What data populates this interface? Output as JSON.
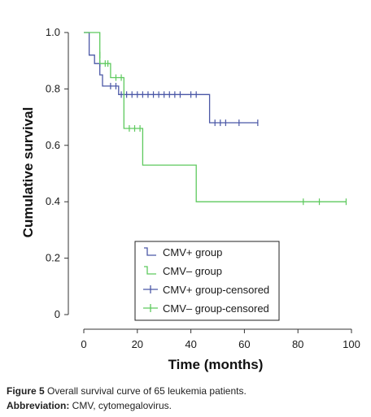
{
  "chart_data": {
    "type": "line",
    "xlabel": "Time (months)",
    "ylabel": "Cumulative survival",
    "xlim": [
      0,
      100
    ],
    "ylim": [
      0,
      1.0
    ],
    "x_ticks": [
      "0",
      "20",
      "40",
      "60",
      "80",
      "100"
    ],
    "y_ticks": [
      "0",
      "0.2",
      "0.4",
      "0.6",
      "0.8",
      "1.0"
    ],
    "legend_position": "bottom-center",
    "series": [
      {
        "name": "CMV+ group",
        "color": "#4a57a6",
        "step": true,
        "points": [
          [
            0,
            1.0
          ],
          [
            2,
            1.0
          ],
          [
            2,
            0.92
          ],
          [
            4,
            0.92
          ],
          [
            4,
            0.89
          ],
          [
            6,
            0.89
          ],
          [
            6,
            0.85
          ],
          [
            7,
            0.85
          ],
          [
            7,
            0.81
          ],
          [
            13,
            0.81
          ],
          [
            13,
            0.78
          ],
          [
            47,
            0.78
          ],
          [
            47,
            0.68
          ],
          [
            65,
            0.68
          ]
        ],
        "censored_name": "CMV+ group-censored",
        "censored": [
          [
            6,
            0.89
          ],
          [
            10,
            0.81
          ],
          [
            12,
            0.81
          ],
          [
            14,
            0.78
          ],
          [
            16,
            0.78
          ],
          [
            18,
            0.78
          ],
          [
            20,
            0.78
          ],
          [
            22,
            0.78
          ],
          [
            24,
            0.78
          ],
          [
            26,
            0.78
          ],
          [
            28,
            0.78
          ],
          [
            30,
            0.78
          ],
          [
            32,
            0.78
          ],
          [
            34,
            0.78
          ],
          [
            36,
            0.78
          ],
          [
            40,
            0.78
          ],
          [
            42,
            0.78
          ],
          [
            49,
            0.68
          ],
          [
            51,
            0.68
          ],
          [
            53,
            0.68
          ],
          [
            58,
            0.68
          ],
          [
            65,
            0.68
          ]
        ]
      },
      {
        "name": "CMV– group",
        "color": "#5dc95d",
        "step": true,
        "points": [
          [
            0,
            1.0
          ],
          [
            6,
            1.0
          ],
          [
            6,
            0.89
          ],
          [
            10,
            0.89
          ],
          [
            10,
            0.84
          ],
          [
            15,
            0.84
          ],
          [
            15,
            0.66
          ],
          [
            22,
            0.66
          ],
          [
            22,
            0.53
          ],
          [
            42,
            0.53
          ],
          [
            42,
            0.4
          ],
          [
            98,
            0.4
          ]
        ],
        "censored_name": "CMV– group-censored",
        "censored": [
          [
            6,
            0.92
          ],
          [
            8,
            0.89
          ],
          [
            9,
            0.89
          ],
          [
            12,
            0.84
          ],
          [
            14,
            0.84
          ],
          [
            17,
            0.66
          ],
          [
            19,
            0.66
          ],
          [
            21,
            0.66
          ],
          [
            82,
            0.4
          ],
          [
            88,
            0.4
          ],
          [
            98,
            0.4
          ]
        ]
      }
    ]
  },
  "caption": {
    "figure_label": "Figure 5",
    "figure_text": " Overall survival curve of 65 leukemia patients.",
    "abbrev_label": "Abbreviation:",
    "abbrev_text": " CMV, cytomegalovirus."
  }
}
